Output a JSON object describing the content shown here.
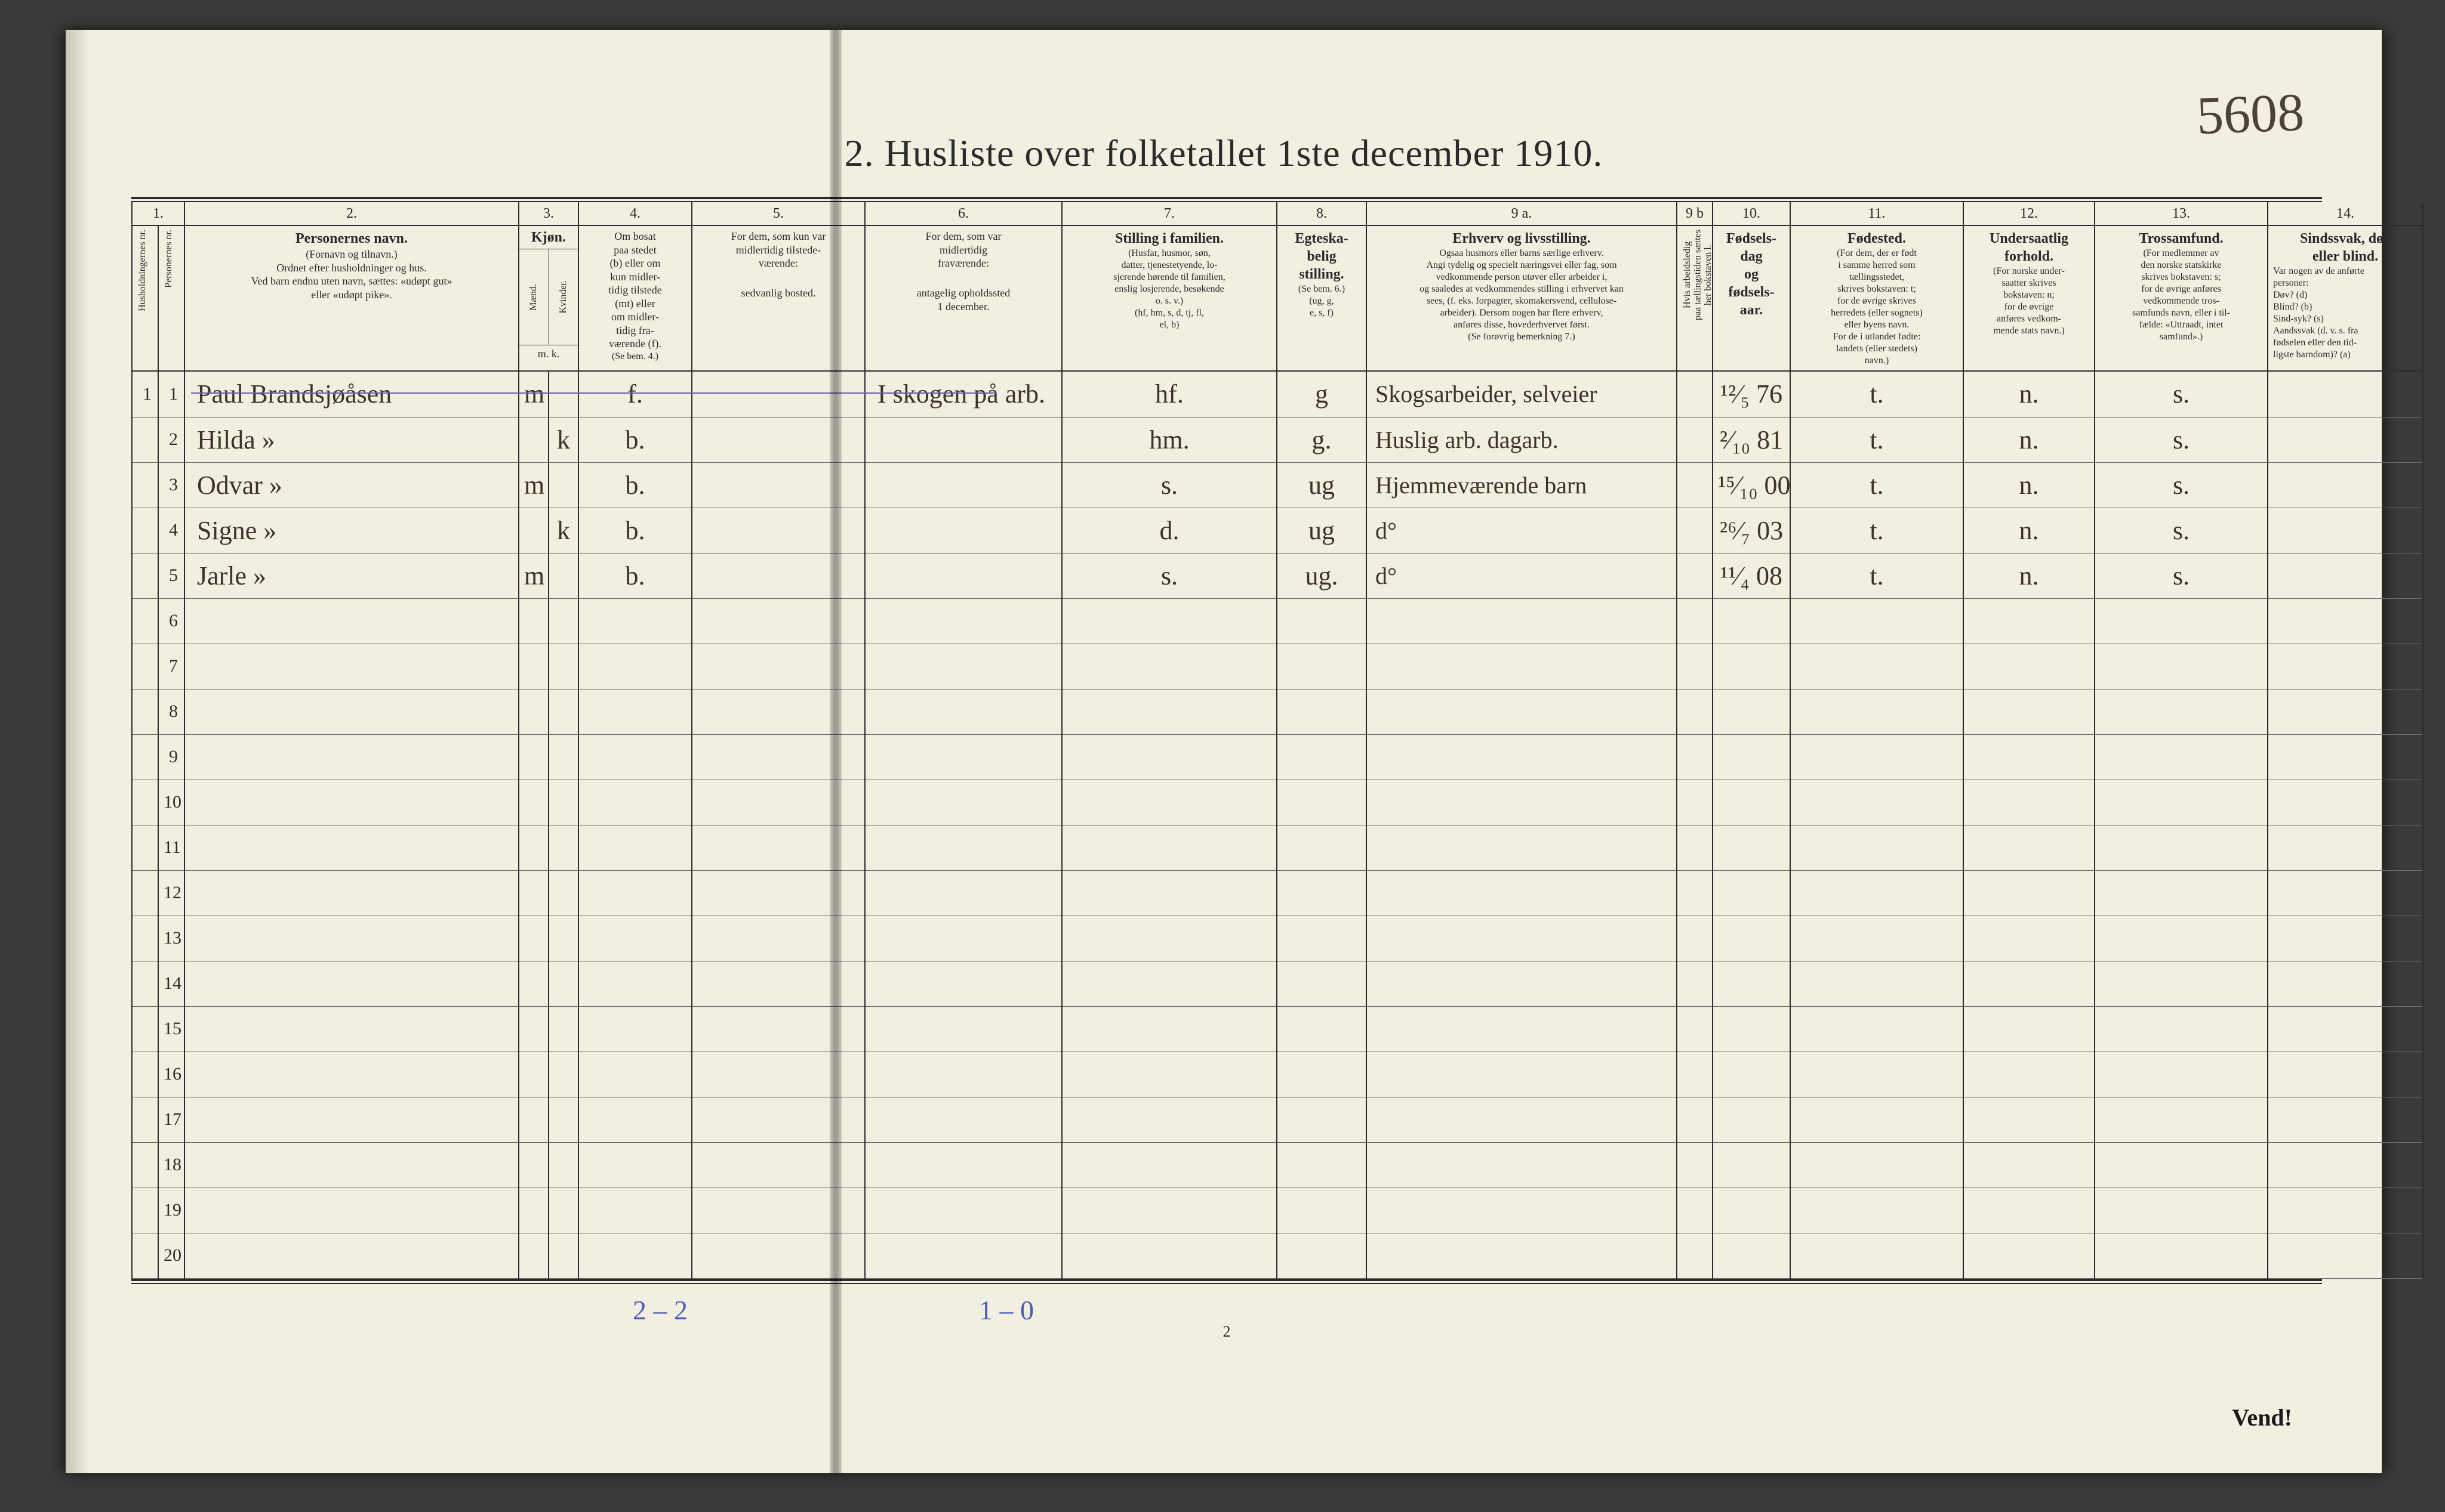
{
  "page_number_handwritten": "5608",
  "title": "2.   Husliste over folketallet 1ste december 1910.",
  "header": {
    "nums": [
      "1.",
      "2.",
      "3.",
      "4.",
      "5.",
      "6.",
      "7.",
      "8.",
      "9 a.",
      "9 b",
      "10.",
      "11.",
      "12.",
      "13.",
      "14."
    ],
    "col1_sub": [
      "Husholdningernes nr.",
      "Personernes nr."
    ],
    "col2": {
      "title": "Personernes navn.",
      "sub": "(Fornavn og tilnavn.)\nOrdnet efter husholdninger og hus.\nVed barn endnu uten navn, sættes: «udøpt gut»\neller «udøpt pike»."
    },
    "col3": {
      "title": "Kjøn.",
      "sub": [
        "Mænd.",
        "Kvinder."
      ],
      "foot": "m.  k."
    },
    "col4": {
      "title": "Om bosat\npaa stedet\n(b) eller om\nkun midler-\ntidig tilstede\n(mt) eller\nom midler-\ntidig fra-\nværende (f).",
      "foot": "(Se bem. 4.)"
    },
    "col5": {
      "title": "For dem, som kun var\nmidlertidig tilstede-\nværende:",
      "sub": "sedvanlig bosted."
    },
    "col6": {
      "title": "For dem, som var\nmidlertidig\nfraværende:",
      "sub": "antagelig opholdssted\n1 december."
    },
    "col7": {
      "title": "Stilling i familien.",
      "sub": "(Husfar, husmor, søn,\ndatter, tjenestetyende, lo-\nsjerende hørende til familien,\nenslig losjerende, besøkende\no. s. v.)\n(hf, hm, s, d, tj, fl,\nel, b)"
    },
    "col8": {
      "title": "Egteska-\nbelig\nstilling.",
      "sub": "(Se bem. 6.)\n(ug, g,\ne, s, f)"
    },
    "col9a": {
      "title": "Erhverv og livsstilling.",
      "sub": "Ogsaa husmors eller barns særlige erhverv.\nAngi tydelig og specielt næringsvei eller fag, som\nvedkommende person utøver eller arbeider i,\nog saaledes at vedkommendes stilling i erhvervet kan\nsees, (f. eks. forpagter, skomakersvend, cellulose-\narbeider). Dersom nogen har flere erhverv,\nanføres disse, hovederhvervet først.\n(Se forøvrig bemerkning 7.)"
    },
    "col9b": "Hvis arbeidsledig\npaa tællingstiden sættes\nher bokstaven l.",
    "col10": {
      "title": "Fødsels-\ndag\nog\nfødsels-\naar."
    },
    "col11": {
      "title": "Fødested.",
      "sub": "(For dem, der er født\ni samme herred som\ntællingsstedet,\nskrives bokstaven: t;\nfor de øvrige skrives\nherredets (eller sognets)\neller byens navn.\nFor de i utlandet fødte:\nlandets (eller stedets)\nnavn.)"
    },
    "col12": {
      "title": "Undersaatlig\nforhold.",
      "sub": "(For norske under-\nsaatter skrives\nbokstaven: n;\nfor de øvrige\nanføres vedkom-\nmende stats navn.)"
    },
    "col13": {
      "title": "Trossamfund.",
      "sub": "(For medlemmer av\nden norske statskirke\nskrives bokstaven: s;\nfor de øvrige anføres\nvedkommende tros-\nsamfunds navn, eller i til-\nfælde: «Uttraadt, intet\nsamfund».)"
    },
    "col14": {
      "title": "Sindssvak, døv\neller blind.",
      "sub": "Var nogen av de anførte\npersoner:\nDøv?        (d)\nBlind?      (b)\nSind-syk?  (s)\nAandssvak (d. v. s. fra\nfødselen eller den tid-\nligste barndom)?  (a)"
    }
  },
  "rows": [
    {
      "hush": "1",
      "pers": "1",
      "navn": "Paul Brandsjøåsen",
      "m": "m",
      "k": "",
      "bos": "f.",
      "c5": "",
      "c6": "I skogen på arb.",
      "c7": "hf.",
      "c8": "g",
      "c9a": "Skogsarbeider, selveier",
      "c10": "¹²⁄₅ 76",
      "c11": "t.",
      "c12": "n.",
      "c13": "s."
    },
    {
      "hush": "",
      "pers": "2",
      "navn": "Hilda            »",
      "m": "",
      "k": "k",
      "bos": "b.",
      "c5": "",
      "c6": "",
      "c7": "hm.",
      "c8": "g.",
      "c9a": "Huslig arb. dagarb.",
      "c10": "²⁄₁₀ 81",
      "c11": "t.",
      "c12": "n.",
      "c13": "s."
    },
    {
      "hush": "",
      "pers": "3",
      "navn": "Odvar           »",
      "m": "m",
      "k": "",
      "bos": "b.",
      "c5": "",
      "c6": "",
      "c7": "s.",
      "c8": "ug",
      "c9a": "Hjemmeværende barn",
      "c10": "¹⁵⁄₁₀ 00",
      "c11": "t.",
      "c12": "n.",
      "c13": "s."
    },
    {
      "hush": "",
      "pers": "4",
      "navn": "Signe            »",
      "m": "",
      "k": "k",
      "bos": "b.",
      "c5": "",
      "c6": "",
      "c7": "d.",
      "c8": "ug",
      "c9a": "d°",
      "c10": "²⁶⁄₇ 03",
      "c11": "t.",
      "c12": "n.",
      "c13": "s."
    },
    {
      "hush": "",
      "pers": "5",
      "navn": "Jarle             »",
      "m": "m",
      "k": "",
      "bos": "b.",
      "c5": "",
      "c6": "",
      "c7": "s.",
      "c8": "ug.",
      "c9a": "d°",
      "c10": "¹¹⁄₄ 08",
      "c11": "t.",
      "c12": "n.",
      "c13": "s."
    }
  ],
  "empty_rows_from": 6,
  "empty_rows_to": 20,
  "footer": {
    "left": "2 – 2",
    "mid": "1 – 0",
    "pageno": "2",
    "vend": "Vend!"
  },
  "colors": {
    "paper": "#f2efe0",
    "ink": "#2b2b2b",
    "hand_ink": "#3a342a",
    "blue_pencil": "#4a5bbf",
    "purple_line": "#6b5fae",
    "bg": "#3a3a3a"
  }
}
